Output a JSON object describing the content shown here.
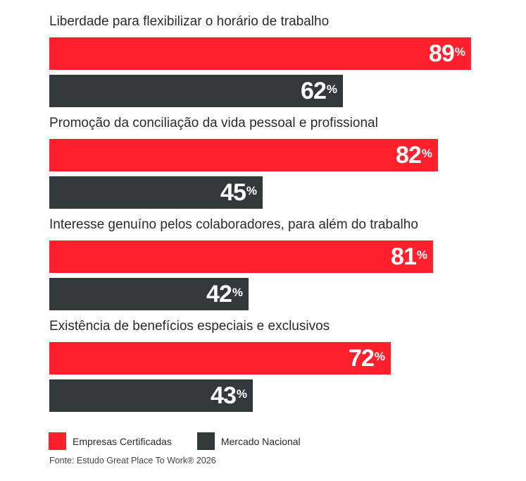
{
  "chart_data": {
    "type": "bar",
    "orientation": "horizontal",
    "categories": [
      "Liberdade para flexibilizar o horário de trabalho",
      "Promoção da conciliação da vida pessoal e profissional",
      "Interesse genuíno pelos colaboradores, para além do trabalho",
      "Existência de benefícios especiais e exclusivos"
    ],
    "series": [
      {
        "name": "Empresas Certificadas",
        "color": "#ff1f2d",
        "values": [
          89,
          82,
          81,
          72
        ]
      },
      {
        "name": "Mercado Nacional",
        "color": "#33383b",
        "values": [
          62,
          45,
          42,
          43
        ]
      }
    ],
    "value_suffix": "%",
    "xlim": [
      0,
      100
    ],
    "grid": false,
    "legend_position": "bottom-left"
  },
  "source": "Fonte: Estudo Great Place To Work® 2026"
}
